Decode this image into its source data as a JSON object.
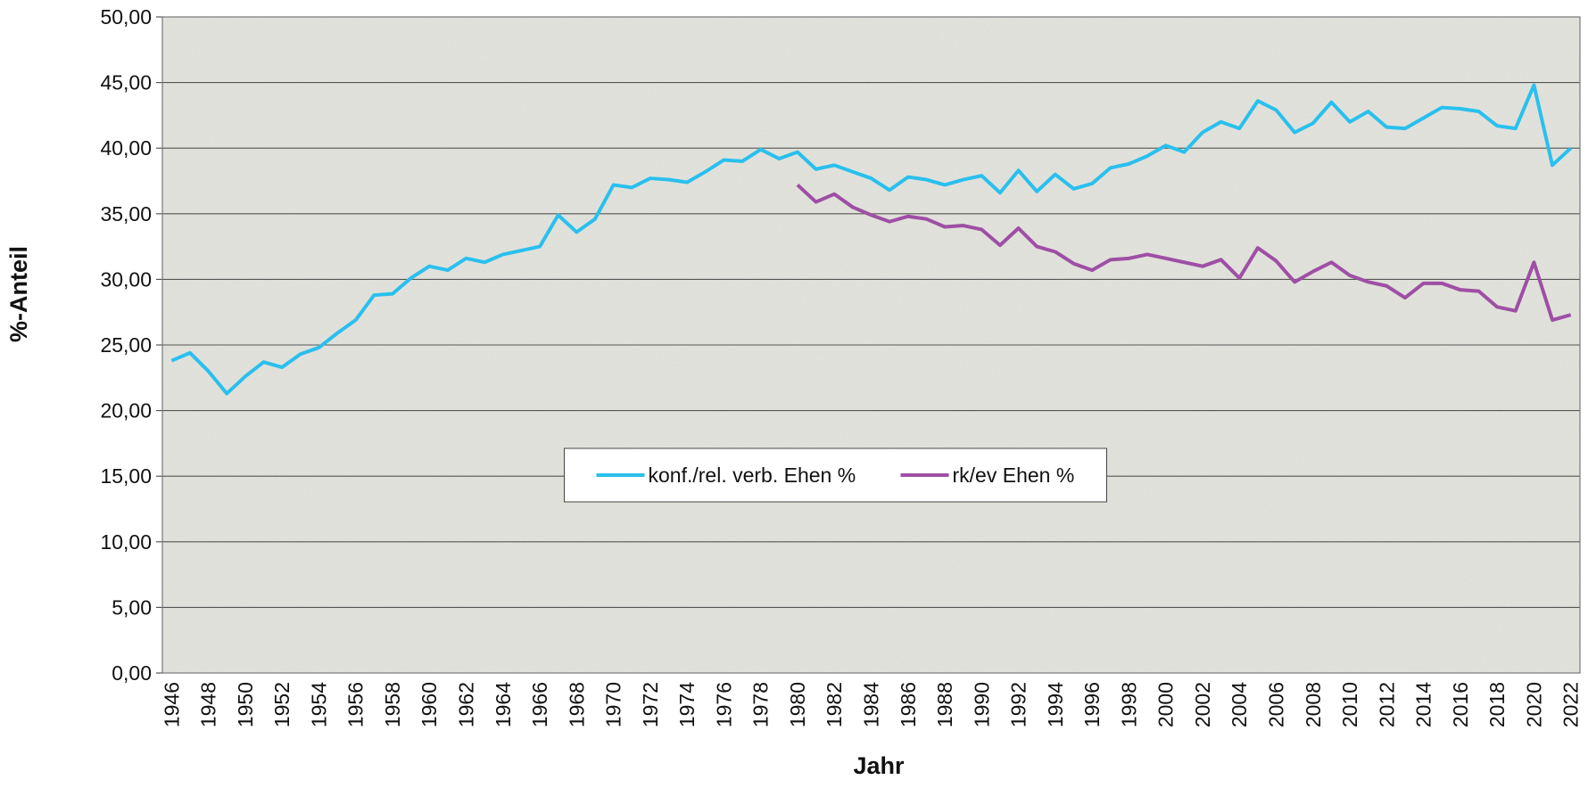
{
  "chart_data": {
    "type": "line",
    "x_label": "Jahr",
    "y_label": "%-Anteil",
    "categories": [
      "1946",
      null,
      "1948",
      null,
      "1950",
      null,
      "1952",
      null,
      "1954",
      null,
      "1956",
      null,
      "1958",
      null,
      "1960",
      null,
      "1962",
      null,
      "1964",
      null,
      "1966",
      null,
      "1968",
      null,
      "1970",
      null,
      "1972",
      null,
      "1974",
      null,
      "1976",
      null,
      "1978",
      null,
      "1980",
      null,
      "1982",
      null,
      "1984",
      null,
      "1986",
      null,
      "1988",
      null,
      "1990",
      null,
      "1992",
      null,
      "1994",
      null,
      "1996",
      null,
      "1998",
      null,
      "2000",
      null,
      "2002",
      null,
      "2004",
      null,
      "2006",
      null,
      "2008",
      null,
      "2010",
      null,
      "2012",
      null,
      "2014",
      null,
      "2016",
      null,
      "2018",
      null,
      "2020",
      null,
      "2022"
    ],
    "series": [
      {
        "name": "konf./rel. verb. Ehen %",
        "color": "#29c0ee",
        "values": [
          23.8,
          24.4,
          23.0,
          21.3,
          22.6,
          23.7,
          23.3,
          24.3,
          24.8,
          25.9,
          26.9,
          28.8,
          28.9,
          30.1,
          31.0,
          30.7,
          31.6,
          31.3,
          31.9,
          32.2,
          32.5,
          34.9,
          33.6,
          34.6,
          37.2,
          37.0,
          37.7,
          37.6,
          37.4,
          38.2,
          39.1,
          39.0,
          39.9,
          39.2,
          39.7,
          38.4,
          38.7,
          38.2,
          37.7,
          36.8,
          37.8,
          37.6,
          37.2,
          37.6,
          37.9,
          36.6,
          38.3,
          36.7,
          38.0,
          36.9,
          37.3,
          38.5,
          38.8,
          39.4,
          40.2,
          39.7,
          41.2,
          42.0,
          41.5,
          43.6,
          42.9,
          41.2,
          41.9,
          43.5,
          42.0,
          42.8,
          41.6,
          41.5,
          42.3,
          43.1,
          43.0,
          42.8,
          41.7,
          41.5,
          44.8,
          38.7,
          40.0
        ]
      },
      {
        "name": "rk/ev Ehen %",
        "color": "#9e4fa5",
        "values": [
          null,
          null,
          null,
          null,
          null,
          null,
          null,
          null,
          null,
          null,
          null,
          null,
          null,
          null,
          null,
          null,
          null,
          null,
          null,
          null,
          null,
          null,
          null,
          null,
          null,
          null,
          null,
          null,
          null,
          null,
          null,
          null,
          null,
          null,
          37.2,
          35.9,
          36.5,
          35.5,
          34.9,
          34.4,
          34.8,
          34.6,
          34.0,
          34.1,
          33.8,
          32.6,
          33.9,
          32.5,
          32.1,
          31.2,
          30.7,
          31.5,
          31.6,
          31.9,
          31.6,
          31.3,
          31.0,
          31.5,
          30.1,
          32.4,
          31.4,
          29.8,
          30.6,
          31.3,
          30.3,
          29.8,
          29.5,
          28.6,
          29.7,
          29.7,
          29.2,
          29.1,
          27.9,
          27.6,
          31.3,
          26.9,
          27.3
        ]
      }
    ],
    "ylim": [
      0,
      50
    ],
    "yticks": [
      {
        "value": 0,
        "label": "0,00"
      },
      {
        "value": 5,
        "label": "5,00"
      },
      {
        "value": 10,
        "label": "10,00"
      },
      {
        "value": 15,
        "label": "15,00"
      },
      {
        "value": 20,
        "label": "20,00"
      },
      {
        "value": 25,
        "label": "25,00"
      },
      {
        "value": 30,
        "label": "30,00"
      },
      {
        "value": 35,
        "label": "35,00"
      },
      {
        "value": 40,
        "label": "40,00"
      },
      {
        "value": 45,
        "label": "45,00"
      },
      {
        "value": 50,
        "label": "50,00"
      }
    ],
    "grid": true,
    "legend": "center"
  }
}
